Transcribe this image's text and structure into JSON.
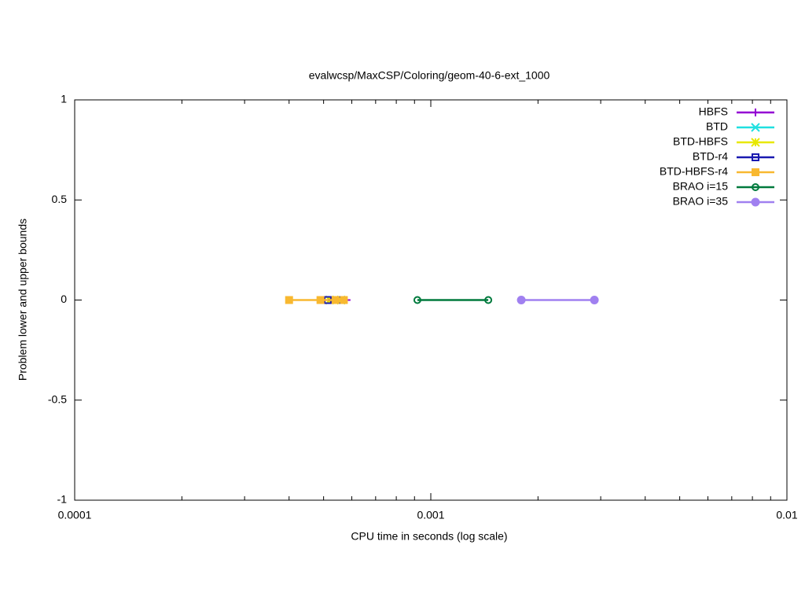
{
  "chart_data": {
    "type": "line",
    "title": "evalwcsp/MaxCSP/Coloring/geom-40-6-ext_1000",
    "xlabel": "CPU time in seconds (log scale)",
    "ylabel": "Problem lower and upper bounds",
    "xscale": "log",
    "minor_ticks": true,
    "xlim": [
      0.0001,
      0.01
    ],
    "xticks": [
      0.0001,
      0.001,
      0.01
    ],
    "ylim": [
      -1,
      1
    ],
    "yticks": [
      -1,
      -0.5,
      0,
      0.5,
      1
    ],
    "legend": "top-right",
    "series": [
      {
        "name": "HBFS",
        "color": "#9400d3",
        "marker": "plus",
        "x": [
          0.00052,
          0.00058
        ],
        "values": [
          0,
          0
        ]
      },
      {
        "name": "BTD",
        "color": "#20e0e0",
        "marker": "cross",
        "x": [
          0.00052,
          0.00056
        ],
        "values": [
          0,
          0
        ]
      },
      {
        "name": "BTD-HBFS",
        "color": "#e8e800",
        "marker": "star",
        "x": [
          0.00052,
          0.00056
        ],
        "values": [
          0,
          0
        ]
      },
      {
        "name": "BTD-r4",
        "color": "#1a1ab0",
        "marker": "open-square",
        "x": [
          0.000514,
          0.00055
        ],
        "values": [
          0,
          0
        ]
      },
      {
        "name": "BTD-HBFS-r4",
        "color": "#f8b830",
        "marker": "square",
        "x": [
          0.0004,
          0.00049,
          0.00054,
          0.00057
        ],
        "values": [
          0,
          0,
          0,
          0
        ]
      },
      {
        "name": "BRAO i=15",
        "color": "#007a3d",
        "marker": "open-circle",
        "x": [
          0.000917,
          0.00145
        ],
        "values": [
          0,
          0
        ]
      },
      {
        "name": "BRAO i=35",
        "color": "#a080f0",
        "marker": "circle",
        "x": [
          0.001795,
          0.00288
        ],
        "values": [
          0,
          0
        ]
      }
    ]
  }
}
